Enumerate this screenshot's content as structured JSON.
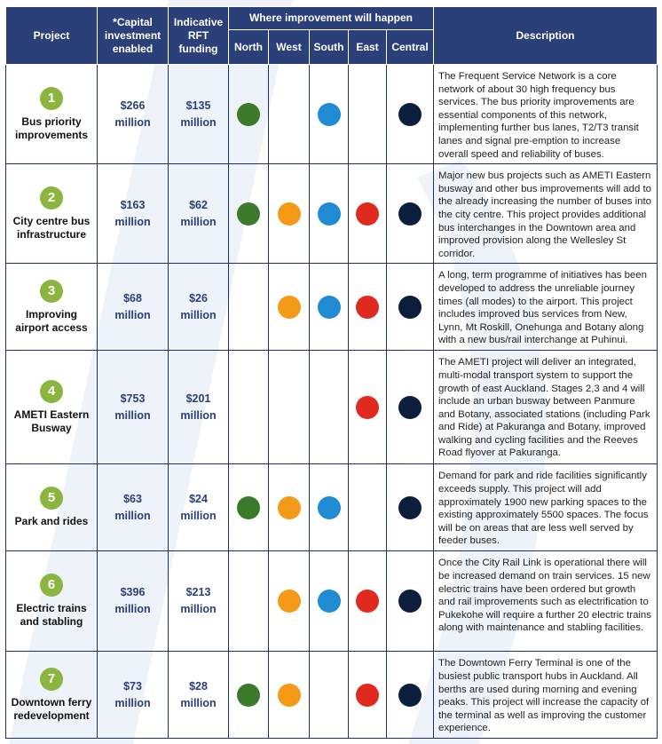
{
  "headers": {
    "project": "Project",
    "capital": "*Capital investment enabled",
    "rft": "Indicative RFT funding",
    "where": "Where improvement will happen",
    "north": "North",
    "west": "West",
    "south": "South",
    "east": "East",
    "central": "Central",
    "description": "Description"
  },
  "colors": {
    "north": "#3a7a2a",
    "west": "#f59a18",
    "south": "#1e8bd2",
    "east": "#e02a1f",
    "central": "#0b1f3c",
    "header_bg": "#2b3f78",
    "number_badge": "#8ab53e"
  },
  "rows": [
    {
      "number": "1",
      "name": "Bus priority improvements",
      "capital_amount": "$266",
      "capital_unit": "million",
      "rft_amount": "$135",
      "rft_unit": "million",
      "regions": {
        "north": true,
        "west": false,
        "south": true,
        "east": false,
        "central": true
      },
      "description": "The Frequent Service Network is a core network of about 30 high frequency bus services. The bus priority improvements are essential components of this network, implementing further bus lanes, T2/T3 transit lanes and signal pre-emption to increase overall speed and reliability of buses."
    },
    {
      "number": "2",
      "name": "City centre bus infrastructure",
      "capital_amount": "$163",
      "capital_unit": "million",
      "rft_amount": "$62",
      "rft_unit": "million",
      "regions": {
        "north": true,
        "west": true,
        "south": true,
        "east": true,
        "central": true
      },
      "description": "Major new bus projects such as AMETI Eastern busway and other bus improvements will add to the already increasing the number of buses into the city centre. This project provides additional bus interchanges in the Downtown area and improved provision along the Wellesley St corridor."
    },
    {
      "number": "3",
      "name": "Improving airport access",
      "capital_amount": "$68",
      "capital_unit": "million",
      "rft_amount": "$26",
      "rft_unit": "million",
      "regions": {
        "north": false,
        "west": true,
        "south": true,
        "east": true,
        "central": true
      },
      "description": "A long, term programme of initiatives has been developed to address the unreliable journey times (all modes) to the airport. This project includes improved bus services from New, Lynn, Mt Roskill, Onehunga and Botany along with a new bus/rail interchange at Puhinui."
    },
    {
      "number": "4",
      "name": "AMETI Eastern Busway",
      "capital_amount": "$753",
      "capital_unit": "million",
      "rft_amount": "$201",
      "rft_unit": "million",
      "regions": {
        "north": false,
        "west": false,
        "south": false,
        "east": true,
        "central": true
      },
      "description": "The AMETI project will deliver an integrated, multi-modal transport system to support the growth of east Auckland. Stages 2,3 and 4 will include an urban busway between Panmure and Botany, associated stations (including Park and Ride) at Pakuranga and Botany, improved walking and cycling facilities and the Reeves Road flyover at Pakuranga."
    },
    {
      "number": "5",
      "name": "Park and rides",
      "capital_amount": "$63",
      "capital_unit": "million",
      "rft_amount": "$24",
      "rft_unit": "million",
      "regions": {
        "north": true,
        "west": true,
        "south": true,
        "east": false,
        "central": true
      },
      "description": "Demand for park and ride facilities significantly exceeds supply. This project will add approximately 1900 new parking spaces to the existing approximately 5500 spaces. The focus will be on areas that are less well served by feeder buses."
    },
    {
      "number": "6",
      "name": "Electric trains and stabling",
      "capital_amount": "$396",
      "capital_unit": "million",
      "rft_amount": "$213",
      "rft_unit": "million",
      "regions": {
        "north": false,
        "west": true,
        "south": true,
        "east": true,
        "central": true
      },
      "description": "Once the City Rail Link is operational there will be increased demand on train services. 15 new electric trains have been ordered but growth and rail improvements such as electrification to Pukekohe will require a further 20 electric trains along with maintenance and stabling facilities."
    },
    {
      "number": "7",
      "name": "Downtown ferry redevelopment",
      "capital_amount": "$73",
      "capital_unit": "million",
      "rft_amount": "$28",
      "rft_unit": "million",
      "regions": {
        "north": true,
        "west": true,
        "south": false,
        "east": true,
        "central": true
      },
      "description": "The Downtown Ferry Terminal is one of the busiest public transport hubs in Auckland. All berths are used during morning and evening peaks. This project will increase the capacity of the terminal as well as improving the customer experience."
    }
  ]
}
